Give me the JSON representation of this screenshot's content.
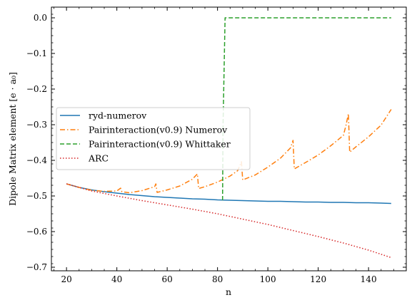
{
  "chart_data": {
    "type": "line",
    "xlabel": "n",
    "ylabel": "Dipole Matrix element [e · a₀]",
    "xlim": [
      14,
      155
    ],
    "ylim": [
      -0.71,
      0.03
    ],
    "x_ticks": [
      20,
      40,
      60,
      80,
      100,
      120,
      140
    ],
    "y_ticks": [
      0.0,
      -0.1,
      -0.2,
      -0.3,
      -0.4,
      -0.5,
      -0.6,
      -0.7
    ],
    "x_tick_labels": [
      "20",
      "40",
      "60",
      "80",
      "100",
      "120",
      "140"
    ],
    "y_tick_labels": [
      "0.0",
      "−0.1",
      "−0.2",
      "−0.3",
      "−0.4",
      "−0.5",
      "−0.6",
      "−0.7"
    ],
    "grid": false,
    "legend_position": "center-left",
    "series": [
      {
        "name": "ryd-numerov",
        "color": "#1f77b4",
        "style": "solid",
        "x": [
          20,
          25,
          30,
          35,
          40,
          45,
          50,
          55,
          60,
          65,
          70,
          75,
          80,
          85,
          90,
          95,
          100,
          105,
          110,
          115,
          120,
          125,
          130,
          135,
          140,
          145,
          149
        ],
        "y": [
          -0.466,
          -0.476,
          -0.483,
          -0.488,
          -0.492,
          -0.496,
          -0.499,
          -0.502,
          -0.504,
          -0.506,
          -0.508,
          -0.509,
          -0.511,
          -0.512,
          -0.513,
          -0.514,
          -0.515,
          -0.515,
          -0.516,
          -0.517,
          -0.517,
          -0.518,
          -0.518,
          -0.519,
          -0.519,
          -0.52,
          -0.521
        ]
      },
      {
        "name": "Pairinteraction(v0.9) Numerov",
        "color": "#ff7f0e",
        "style": "dashdot",
        "x": [
          20,
          25,
          30,
          35,
          40,
          41.5,
          42,
          45,
          50,
          55,
          55.5,
          56,
          60,
          65,
          70,
          72,
          72.5,
          75,
          80,
          85,
          88,
          89.5,
          90,
          95,
          100,
          105,
          109,
          110,
          110.5,
          115,
          120,
          125,
          130,
          131,
          132,
          132.5,
          135,
          140,
          145,
          149
        ],
        "y": [
          -0.466,
          -0.476,
          -0.484,
          -0.487,
          -0.486,
          -0.478,
          -0.488,
          -0.491,
          -0.485,
          -0.474,
          -0.466,
          -0.49,
          -0.483,
          -0.472,
          -0.453,
          -0.438,
          -0.479,
          -0.474,
          -0.461,
          -0.444,
          -0.429,
          -0.404,
          -0.455,
          -0.441,
          -0.419,
          -0.394,
          -0.365,
          -0.344,
          -0.424,
          -0.406,
          -0.385,
          -0.359,
          -0.33,
          -0.303,
          -0.269,
          -0.377,
          -0.362,
          -0.334,
          -0.301,
          -0.257
        ]
      },
      {
        "name": "Pairinteraction(v0.9) Whittaker",
        "color": "#2ca02c",
        "style": "dashed",
        "x": [
          82,
          82.2,
          83,
          149
        ],
        "y": [
          -0.512,
          -0.3,
          0.0,
          0.0
        ]
      },
      {
        "name": "ARC",
        "color": "#d62728",
        "style": "dotted",
        "x": [
          20,
          30,
          40,
          50,
          60,
          70,
          80,
          90,
          100,
          110,
          120,
          130,
          140,
          149
        ],
        "y": [
          -0.466,
          -0.486,
          -0.5,
          -0.513,
          -0.525,
          -0.537,
          -0.55,
          -0.565,
          -0.58,
          -0.597,
          -0.614,
          -0.632,
          -0.652,
          -0.673
        ]
      }
    ]
  }
}
